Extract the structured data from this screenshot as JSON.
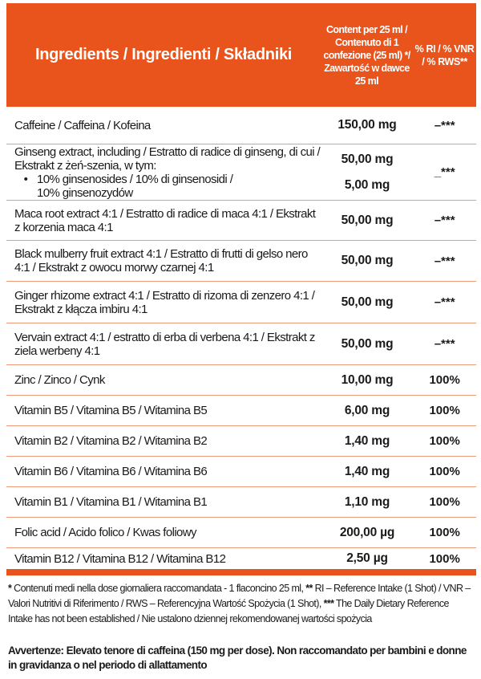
{
  "header": {
    "ingredients": "Ingredients / Ingredienti / Składniki",
    "content": "Content per 25 ml / Contenuto di 1 confezione (25 ml) */ Zawartość w dawce 25 ml",
    "ri": "% RI / % VNR / % RWS**"
  },
  "rows": [
    {
      "name": "Caffeine / Caffeina / Kofeina",
      "amount": "150,00 mg",
      "ri": "–***"
    },
    {
      "name": "Ginseng extract, including / Estratto di radice di ginseng, di cui / Ekstrakt z żeń-szenia, w tym:",
      "amount": "50,00 mg",
      "sub_bullet": "•",
      "sub_name": "10% ginsenosides / 10% di ginsenosidi / 10% ginsenozydów",
      "sub_amount": "5,00 mg",
      "ri": "_***"
    },
    {
      "name": "Maca root extract 4:1 / Estratto di radice di maca 4:1 / Ekstrakt z korzenia maca 4:1",
      "amount": "50,00 mg",
      "ri": "–***"
    },
    {
      "name": "Black mulberry fruit extract 4:1 / Estratto di frutti di gelso nero 4:1 / Ekstrakt z owocu morwy czarnej 4:1",
      "amount": "50,00 mg",
      "ri": "–***"
    },
    {
      "name": "Ginger rhizome extract 4:1 / Estratto di rizoma di zenzero 4:1 / Ekstrakt z kłącza imbiru 4:1",
      "amount": "50,00 mg",
      "ri": "–***"
    },
    {
      "name": "Vervain extract 4:1 / estratto di erba di verbena 4:1 / Ekstrakt z ziela werbeny 4:1",
      "amount": "50,00 mg",
      "ri": "–***"
    },
    {
      "name": "Zinc / Zinco / Cynk",
      "amount": "10,00 mg",
      "ri": "100%"
    },
    {
      "name": "Vitamin B5 / Vitamina B5 / Witamina B5",
      "amount": "6,00 mg",
      "ri": "100%"
    },
    {
      "name": "Vitamin B2 / Vitamina B2 / Witamina B2",
      "amount": "1,40 mg",
      "ri": "100%"
    },
    {
      "name": "Vitamin B6 / Vitamina B6 / Witamina B6",
      "amount": "1,40 mg",
      "ri": "100%"
    },
    {
      "name": "Vitamin B1 / Vitamina B1 / Witamina B1",
      "amount": "1,10 mg",
      "ri": "100%"
    },
    {
      "name": "Folic acid / Acido folico / Kwas foliowy",
      "amount": "200,00 µg",
      "ri": "100%"
    },
    {
      "name": "Vitamin B12 / Vitamina B12 / Witamina B12",
      "amount": "2,50 µg",
      "ri": "100%"
    }
  ],
  "footnote": {
    "m1": "*",
    "t1": "  Contenuti medi nella dose giornaliera raccomandata - 1 flaconcino 25 ml, ",
    "m2": "**",
    "t2": "  RI – Reference Intake (1 Shot) / VNR – Valori Nutritivi di Riferimento / RWS – Referencyjna Wartość Spożycia (1 Shot), ",
    "m3": "***",
    "t3": " The Daily Dietary Reference Intake has not been established / Nie ustalono dziennej rekomendowanej wartości spożycia"
  },
  "warning": "Avvertenze: Elevato tenore di caffeina (150 mg per dose). Non raccomandato per bambini e donne in gravidanza o nel periodo di allattamento",
  "colors": {
    "accent": "#e8541c"
  }
}
